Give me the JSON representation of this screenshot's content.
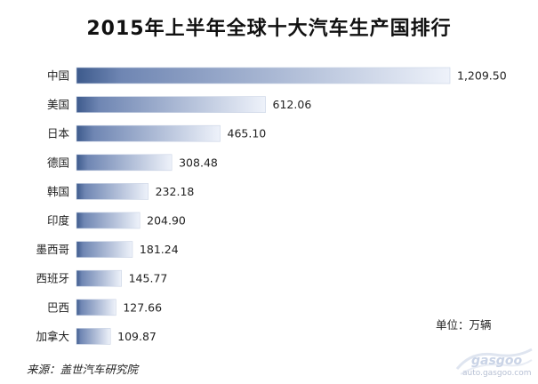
{
  "chart_data": {
    "type": "bar",
    "orientation": "horizontal",
    "title": "2015年上半年全球十大汽车生产国排行",
    "categories": [
      "中国",
      "美国",
      "日本",
      "德国",
      "韩国",
      "印度",
      "墨西哥",
      "西班牙",
      "巴西",
      "加拿大"
    ],
    "values": [
      1209.5,
      612.06,
      465.1,
      308.48,
      232.18,
      204.9,
      181.24,
      145.77,
      127.66,
      109.87
    ],
    "value_labels": [
      "1,209.50",
      "612.06",
      "465.10",
      "308.48",
      "232.18",
      "204.90",
      "181.24",
      "145.77",
      "127.66",
      "109.87"
    ],
    "xlim": [
      0,
      1209.5
    ],
    "grid": false,
    "unit": "单位：万辆",
    "source": "来源：盖世汽车研究院",
    "colors": {
      "bar_start": "#3d5a8c",
      "bar_end": "#eef2fa",
      "bar_edge": "#c8d2e4"
    }
  },
  "watermark": {
    "brand": "gasgoo",
    "site": "auto.gasgoo.com"
  }
}
